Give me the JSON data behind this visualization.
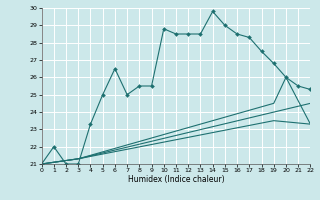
{
  "xlabel": "Humidex (Indice chaleur)",
  "xlim": [
    0,
    22
  ],
  "ylim": [
    21,
    30
  ],
  "yticks": [
    21,
    22,
    23,
    24,
    25,
    26,
    27,
    28,
    29,
    30
  ],
  "xticks": [
    0,
    1,
    2,
    3,
    4,
    5,
    6,
    7,
    8,
    9,
    10,
    11,
    12,
    13,
    14,
    15,
    16,
    17,
    18,
    19,
    20,
    21,
    22
  ],
  "bg_color": "#cce8ea",
  "grid_color": "#ffffff",
  "line_color": "#1e7070",
  "line1_x": [
    0,
    1,
    2,
    3,
    4,
    5,
    6,
    7,
    8,
    9,
    10,
    11,
    12,
    13,
    14,
    15,
    16,
    17,
    18,
    19,
    20,
    21,
    22
  ],
  "line1_y": [
    21.0,
    22.0,
    21.0,
    21.0,
    23.3,
    25.0,
    26.5,
    25.0,
    25.5,
    25.5,
    28.8,
    28.5,
    28.5,
    28.5,
    29.8,
    29.0,
    28.5,
    28.3,
    27.5,
    26.8,
    26.0,
    25.5,
    25.3
  ],
  "line2_x": [
    0,
    3,
    22
  ],
  "line2_y": [
    21.0,
    21.3,
    24.5
  ],
  "line3_x": [
    0,
    3,
    19,
    20,
    22
  ],
  "line3_y": [
    21.0,
    21.3,
    24.5,
    26.0,
    23.3
  ],
  "line4_x": [
    0,
    3,
    19,
    22
  ],
  "line4_y": [
    21.0,
    21.3,
    23.5,
    23.3
  ]
}
